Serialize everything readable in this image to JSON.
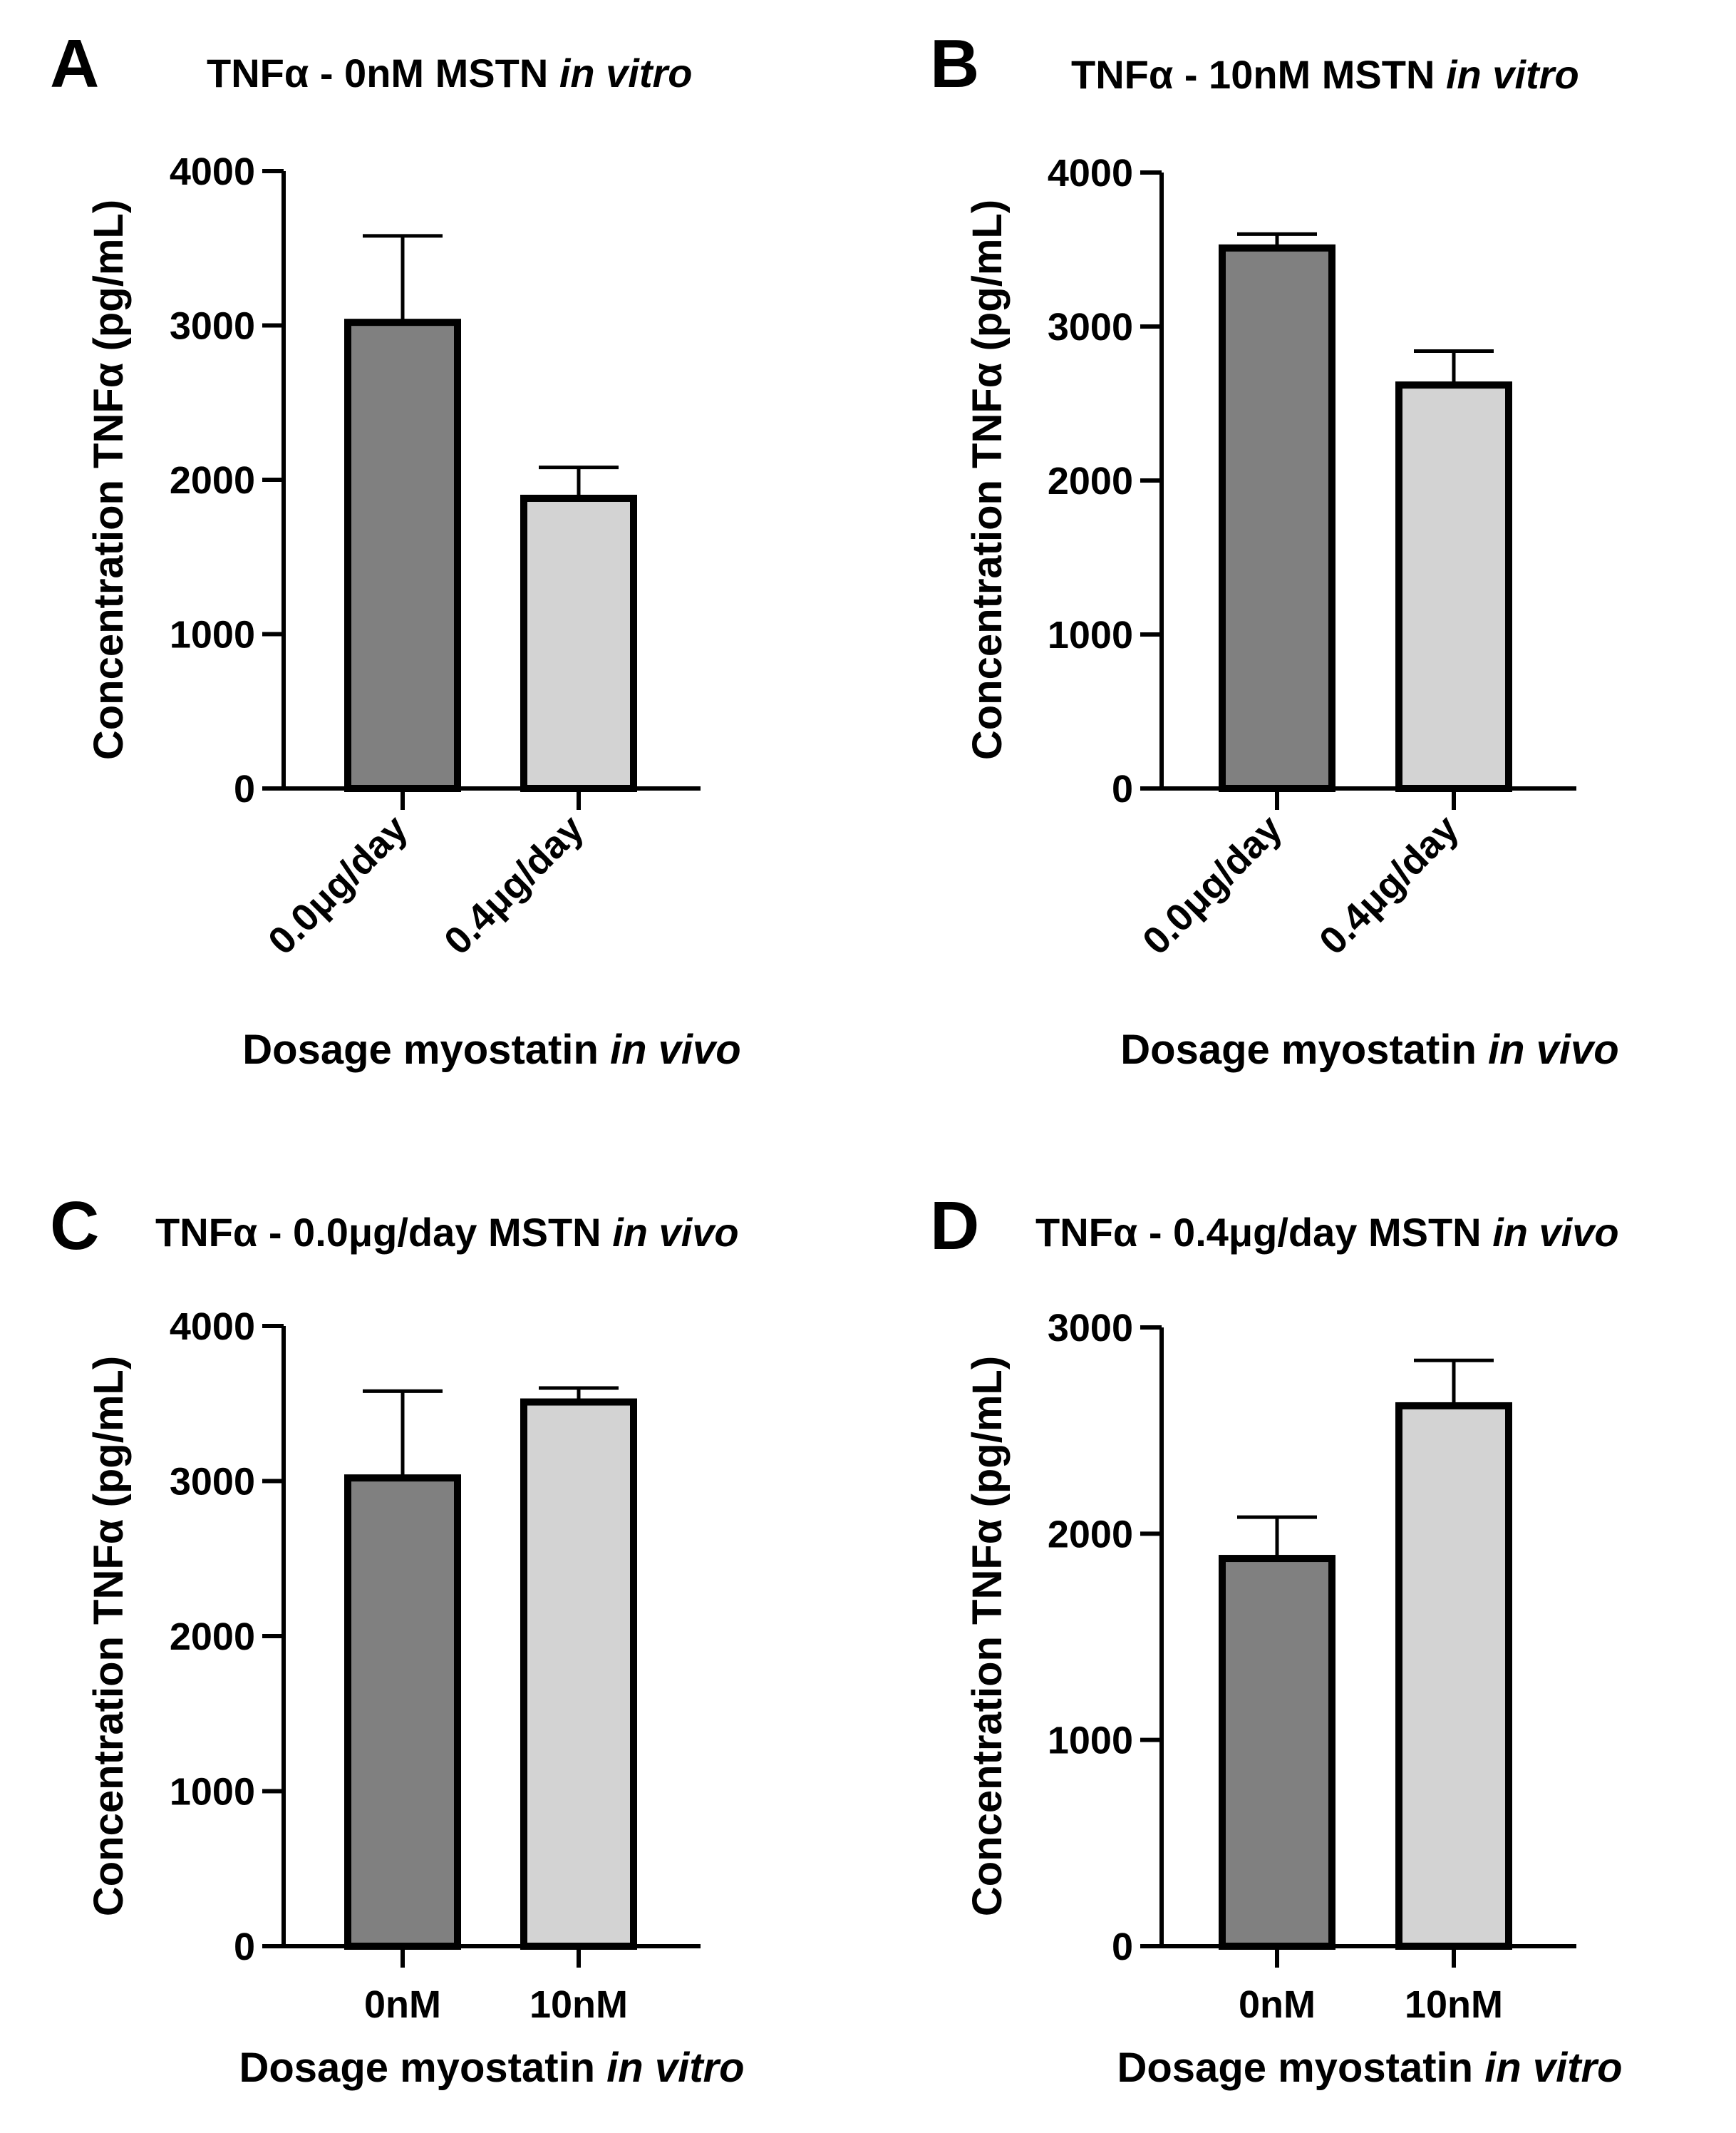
{
  "figure": {
    "panel_colors": {
      "bar_0": "#808080",
      "bar_1": "#d3d3d3",
      "stroke": "#000000"
    }
  },
  "chart_data": [
    {
      "panel": "A",
      "type": "bar",
      "title": "TNFα - 0nM MSTN",
      "title_italic": "in vitro",
      "categories": [
        "0.0μg/day",
        "0.4μg/day"
      ],
      "values": [
        3020,
        1880
      ],
      "errors": [
        560,
        200
      ],
      "ylabel": "Concentration TNFα (pg/mL)",
      "xlabel": "Dosage myostatin",
      "xlabel_italic": "in vivo",
      "ylim": [
        0,
        4000
      ],
      "yticks": [
        0,
        1000,
        2000,
        3000,
        4000
      ],
      "xtick_rotation": true
    },
    {
      "panel": "B",
      "type": "bar",
      "title": "TNFα - 10nM MSTN",
      "title_italic": "in vitro",
      "categories": [
        "0.0μg/day",
        "0.4μg/day"
      ],
      "values": [
        3510,
        2620
      ],
      "errors": [
        90,
        220
      ],
      "ylabel": "Concentration TNFα (pg/mL)",
      "xlabel": "Dosage myostatin",
      "xlabel_italic": "in vivo",
      "ylim": [
        0,
        4000
      ],
      "yticks": [
        0,
        1000,
        2000,
        3000,
        4000
      ],
      "xtick_rotation": true
    },
    {
      "panel": "C",
      "type": "bar",
      "title": "TNFα - 0.0μg/day MSTN",
      "title_italic": "in vivo",
      "categories": [
        "0nM",
        "10nM"
      ],
      "values": [
        3020,
        3510
      ],
      "errors": [
        560,
        90
      ],
      "ylabel": "Concentration TNFα (pg/mL)",
      "xlabel": "Dosage myostatin",
      "xlabel_italic": "in vitro",
      "ylim": [
        0,
        4000
      ],
      "yticks": [
        0,
        1000,
        2000,
        3000,
        4000
      ],
      "xtick_rotation": false
    },
    {
      "panel": "D",
      "type": "bar",
      "title": "TNFα - 0.4μg/day MSTN",
      "title_italic": "in vivo",
      "categories": [
        "0nM",
        "10nM"
      ],
      "values": [
        1880,
        2620
      ],
      "errors": [
        200,
        220
      ],
      "ylabel": "Concentration TNFα (pg/mL)",
      "xlabel": "Dosage myostatin",
      "xlabel_italic": "in vitro",
      "ylim": [
        0,
        3000
      ],
      "yticks": [
        0,
        1000,
        2000,
        3000
      ],
      "xtick_rotation": false
    }
  ]
}
